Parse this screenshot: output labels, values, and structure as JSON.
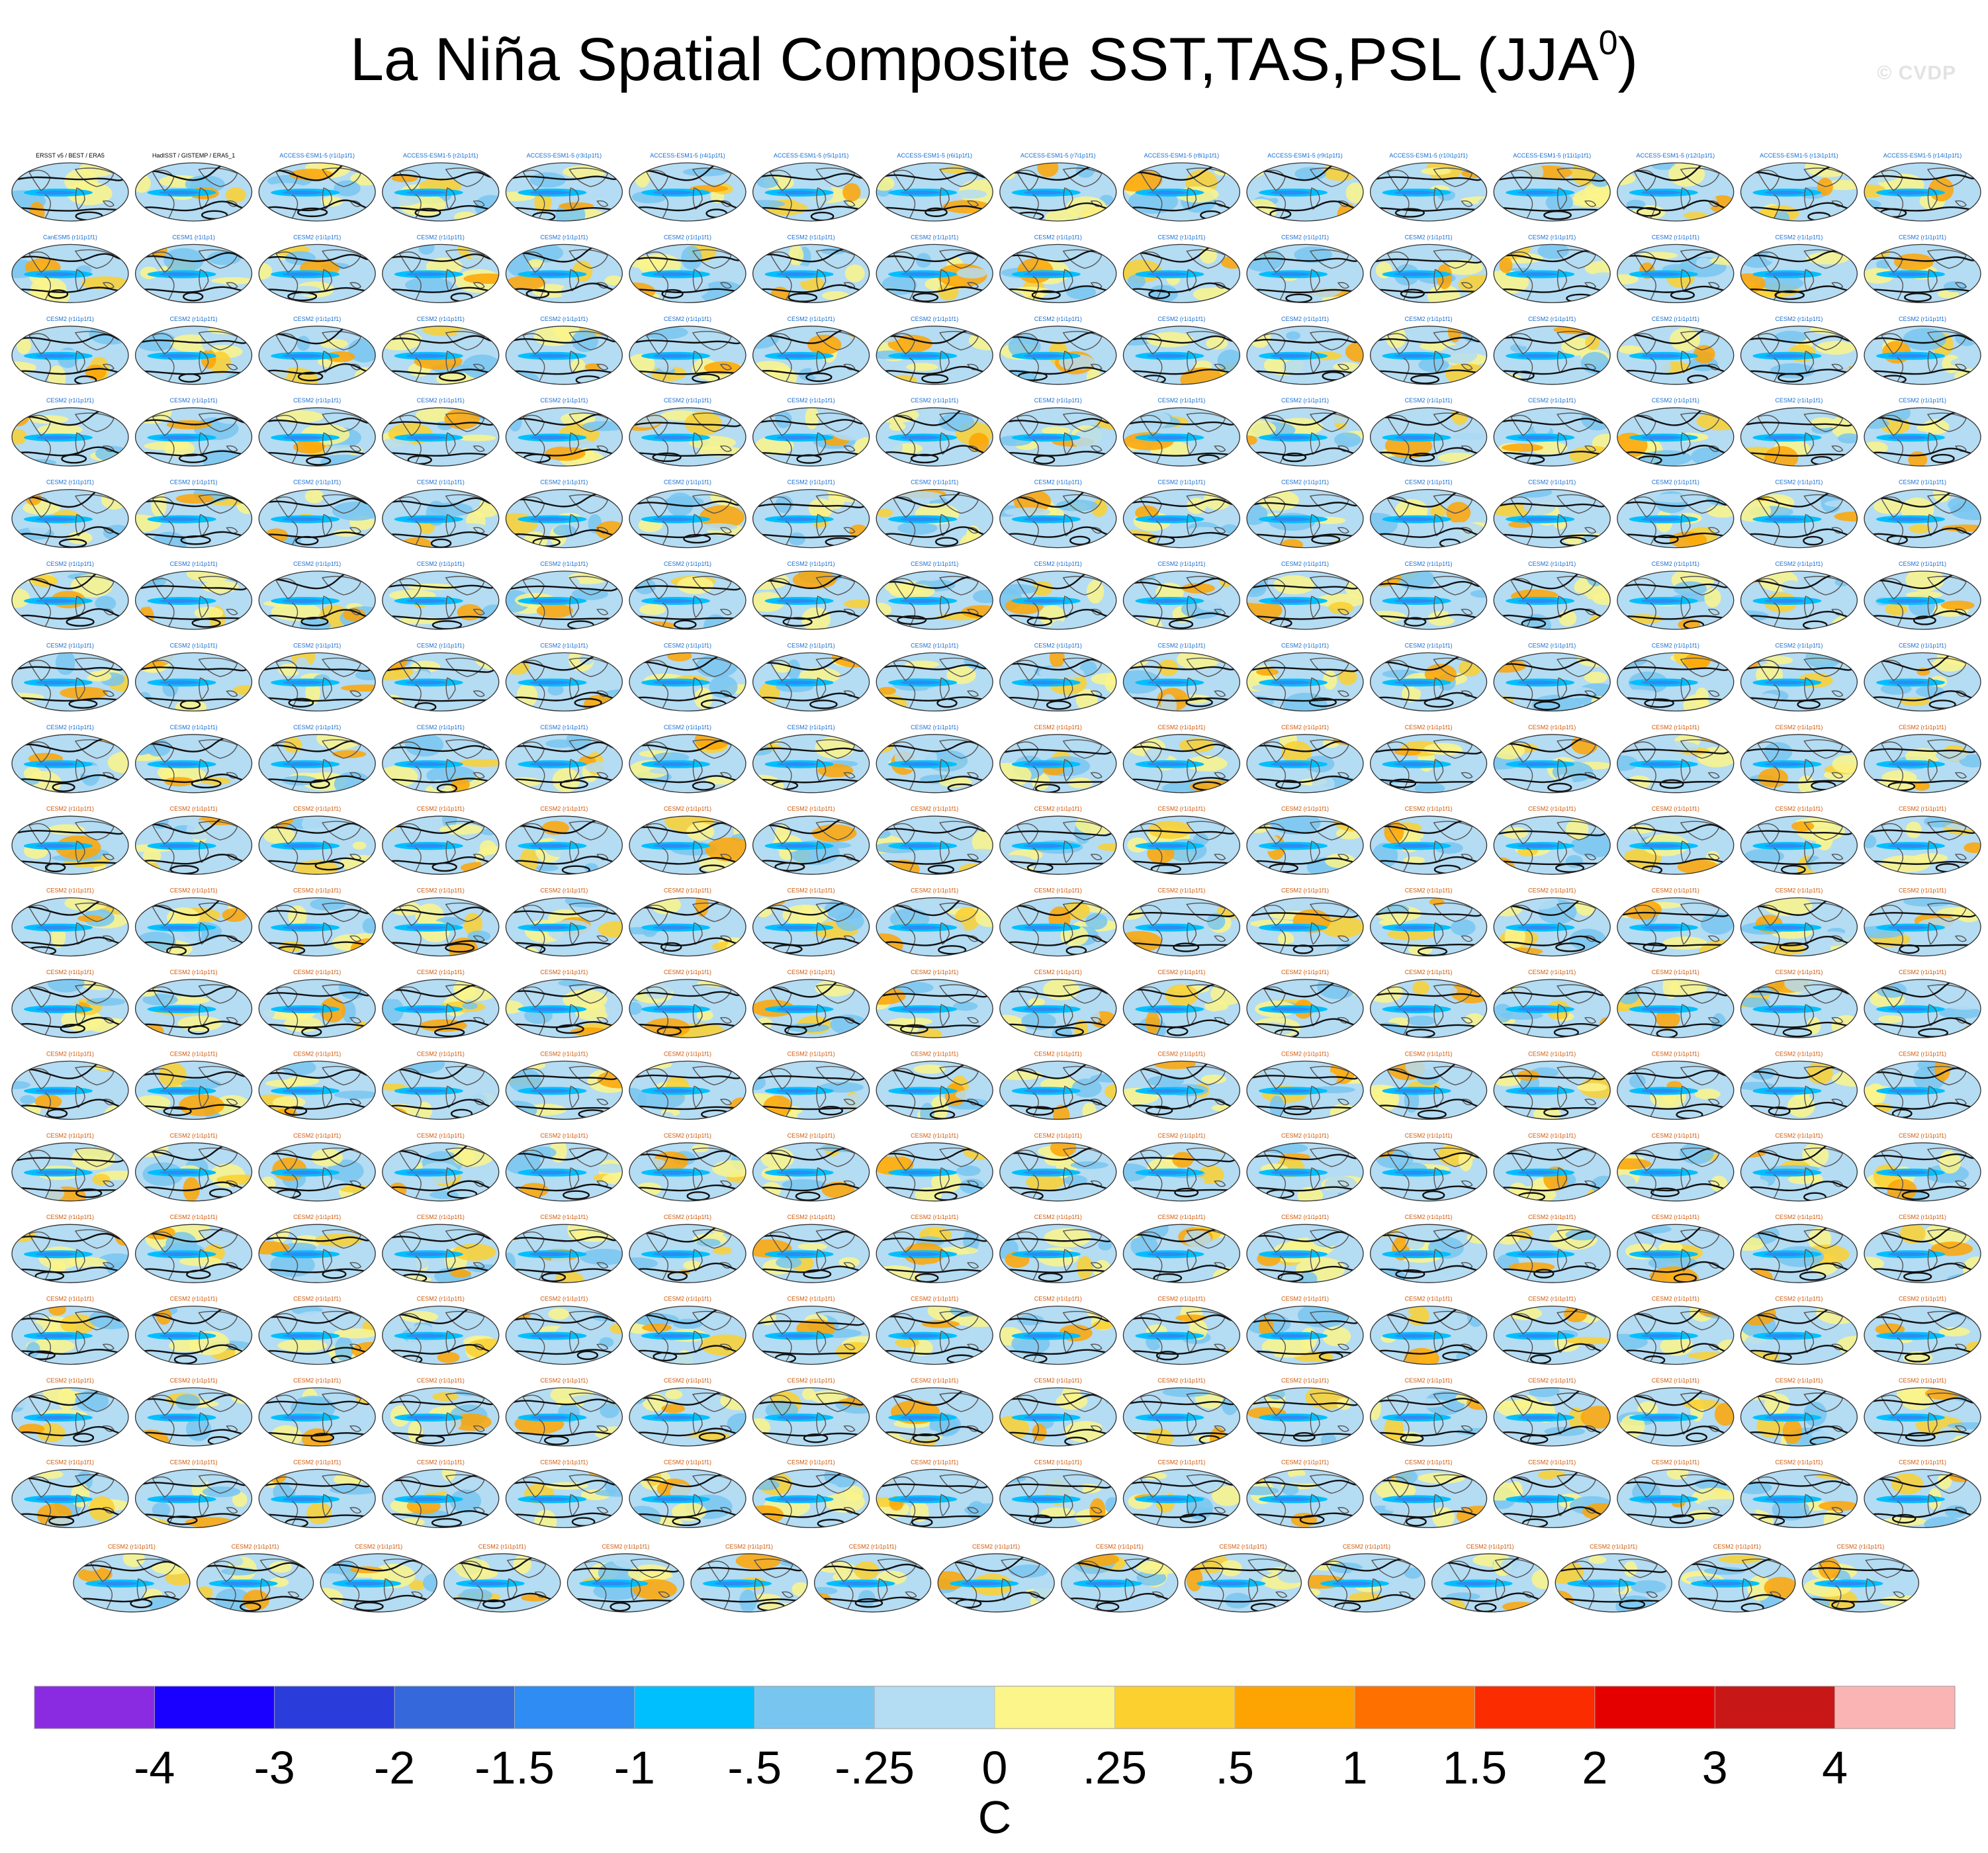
{
  "title": {
    "main": "La Niña Spatial Composite SST,TAS,PSL (JJA",
    "superscript": "0",
    "close": ")"
  },
  "watermark": "© CVDP",
  "chart_data": {
    "type": "heatmap",
    "description_label": "small-multiple global maps",
    "grid_rows_full": 17,
    "columns_per_full_row": 16,
    "last_row_panels": 15,
    "panel_count": 287,
    "colorbar": {
      "unit": "C",
      "tick_labels": [
        "-4",
        "-3",
        "-2",
        "-1.5",
        "-1",
        "-.5",
        "-.25",
        "0",
        ".25",
        ".5",
        "1",
        "1.5",
        "2",
        "3",
        "4"
      ],
      "colors": [
        "#8a2be2",
        "#1a00ff",
        "#2a3ddb",
        "#3568db",
        "#2e8cf2",
        "#00bfff",
        "#78c6f0",
        "#b4dcf3",
        "#fbf58a",
        "#fcd02f",
        "#fea402",
        "#fe7100",
        "#fb2c00",
        "#e50000",
        "#c81717",
        "#fbb4b4"
      ]
    },
    "panel_titles": [
      "ERSST v5 / BEST / ERA5",
      "HadISST / GISTEMP / ERA5_1",
      "ACCESS-ESM1-5 (r1i1p1f1)",
      "ACCESS-ESM1-5 (r2i1p1f1)",
      "ACCESS-ESM1-5 (r3i1p1f1)",
      "ACCESS-ESM1-5 (r4i1p1f1)",
      "ACCESS-ESM1-5 (r5i1p1f1)",
      "ACCESS-ESM1-5 (r6i1p1f1)",
      "ACCESS-ESM1-5 (r7i1p1f1)",
      "ACCESS-ESM1-5 (r8i1p1f1)",
      "ACCESS-ESM1-5 (r9i1p1f1)",
      "ACCESS-ESM1-5 (r10i1p1f1)",
      "ACCESS-ESM1-5 (r11i1p1f1)",
      "ACCESS-ESM1-5 (r12i1p1f1)",
      "ACCESS-ESM1-5 (r13i1p1f1)",
      "ACCESS-ESM1-5 (r14i1p1f1)",
      "CanESM5 (r1i1p1f1)",
      "CESM1 (r1i1p1)",
      "CESM2 (r1i1p1f1)"
    ]
  }
}
